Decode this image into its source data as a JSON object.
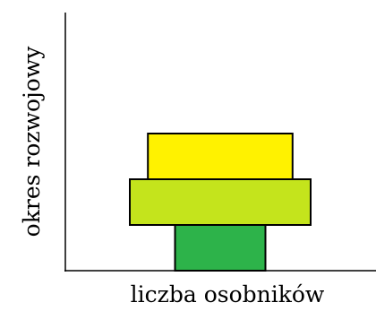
{
  "chart_data": {
    "type": "bar",
    "orientation": "horizontal",
    "layout": "centered-pyramid",
    "title": "",
    "xlabel": "liczba osobników",
    "ylabel": "okres rozwojowy",
    "categories": [
      "",
      "",
      ""
    ],
    "series": [
      {
        "values": [
          10,
          20,
          16
        ],
        "colors": [
          "#2db34a",
          "#c4e41c",
          "#fff200"
        ]
      }
    ],
    "grid": false,
    "legend": "none"
  }
}
